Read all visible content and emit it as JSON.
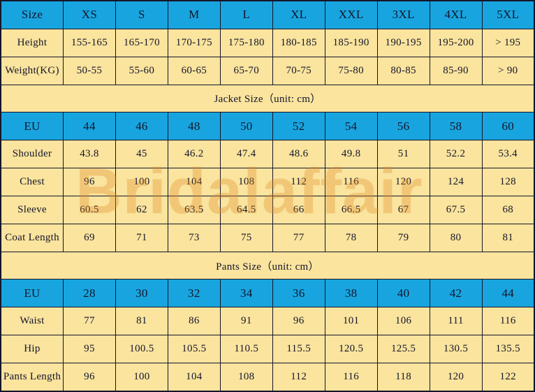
{
  "colors": {
    "header_cell_bg": "#18A5DF",
    "body_cell_bg": "#FAE49E",
    "border": "#15152A",
    "text": "#15152A",
    "watermark": "#E28C28"
  },
  "watermark": {
    "text": "Bridalaffair"
  },
  "table": {
    "column_count": 10,
    "rows": [
      {
        "type": "size-header",
        "cells": [
          "Size",
          "XS",
          "S",
          "M",
          "L",
          "XL",
          "XXL",
          "3XL",
          "4XL",
          "5XL"
        ]
      },
      {
        "type": "data",
        "cells": [
          "Height",
          "155-165",
          "165-170",
          "170-175",
          "175-180",
          "180-185",
          "185-190",
          "190-195",
          "195-200",
          "> 195"
        ]
      },
      {
        "type": "data",
        "cells": [
          "Weight(KG)",
          "50-55",
          "55-60",
          "60-65",
          "65-70",
          "70-75",
          "75-80",
          "80-85",
          "85-90",
          "> 90"
        ]
      },
      {
        "type": "section",
        "label": "Jacket Size（unit: cm）"
      },
      {
        "type": "size-header",
        "cells": [
          "EU",
          "44",
          "46",
          "48",
          "50",
          "52",
          "54",
          "56",
          "58",
          "60"
        ]
      },
      {
        "type": "data",
        "cells": [
          "Shoulder",
          "43.8",
          "45",
          "46.2",
          "47.4",
          "48.6",
          "49.8",
          "51",
          "52.2",
          "53.4"
        ]
      },
      {
        "type": "data",
        "cells": [
          "Chest",
          "96",
          "100",
          "104",
          "108",
          "112",
          "116",
          "120",
          "124",
          "128"
        ]
      },
      {
        "type": "data",
        "cells": [
          "Sleeve",
          "60.5",
          "62",
          "63.5",
          "64.5",
          "66",
          "66.5",
          "67",
          "67.5",
          "68"
        ]
      },
      {
        "type": "data",
        "cells": [
          "Coat Length",
          "69",
          "71",
          "73",
          "75",
          "77",
          "78",
          "79",
          "80",
          "81"
        ]
      },
      {
        "type": "section",
        "label": "Pants Size（unit: cm）"
      },
      {
        "type": "size-header",
        "cells": [
          "EU",
          "28",
          "30",
          "32",
          "34",
          "36",
          "38",
          "40",
          "42",
          "44"
        ]
      },
      {
        "type": "data",
        "cells": [
          "Waist",
          "77",
          "81",
          "86",
          "91",
          "96",
          "101",
          "106",
          "111",
          "116"
        ]
      },
      {
        "type": "data",
        "cells": [
          "Hip",
          "95",
          "100.5",
          "105.5",
          "110.5",
          "115.5",
          "120.5",
          "125.5",
          "130.5",
          "135.5"
        ]
      },
      {
        "type": "data",
        "cells": [
          "Pants Length",
          "96",
          "100",
          "104",
          "108",
          "112",
          "116",
          "118",
          "120",
          "122"
        ]
      }
    ]
  }
}
